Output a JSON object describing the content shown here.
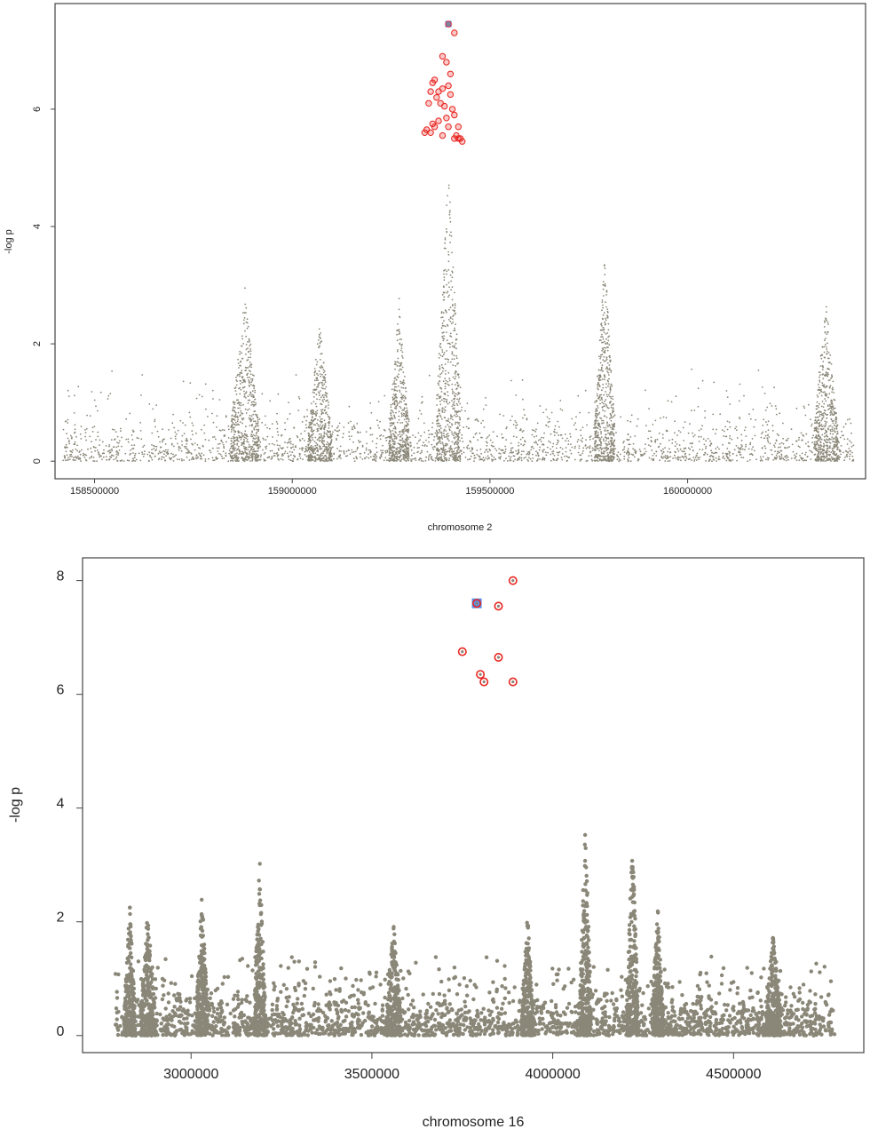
{
  "colors": {
    "background_points": "#8a8778",
    "hit_points": "#e8231e",
    "lead_marker": "#5b8fe8",
    "axis": "#444444"
  },
  "chart_data": [
    {
      "type": "scatter",
      "title": "",
      "xlabel": "chromosome 2",
      "ylabel": "-log p",
      "xlim": [
        158400000,
        160450000
      ],
      "ylim": [
        -0.3,
        7.8
      ],
      "xticks": [
        158500000,
        159000000,
        159500000,
        160000000
      ],
      "xtick_labels": [
        "158500000",
        "159000000",
        "159500000",
        "160000000"
      ],
      "yticks": [
        0,
        2,
        4,
        6
      ],
      "ytick_labels": [
        "0",
        "2",
        "4",
        "6"
      ],
      "grid": false,
      "legend": "none",
      "background_range_x": [
        158420000,
        160420000
      ],
      "peaks": [
        {
          "x": 158880000,
          "height": 3.0,
          "width": 35000
        },
        {
          "x": 159070000,
          "height": 2.4,
          "width": 30000
        },
        {
          "x": 159270000,
          "height": 2.8,
          "width": 25000
        },
        {
          "x": 159395000,
          "height": 5.0,
          "width": 30000
        },
        {
          "x": 159790000,
          "height": 3.5,
          "width": 25000
        },
        {
          "x": 160350000,
          "height": 2.8,
          "width": 30000
        }
      ],
      "highlight_points": [
        {
          "x": 159380000,
          "y": 6.9
        },
        {
          "x": 159390000,
          "y": 6.8
        },
        {
          "x": 159400000,
          "y": 6.6
        },
        {
          "x": 159410000,
          "y": 7.3
        },
        {
          "x": 159395000,
          "y": 6.4
        },
        {
          "x": 159380000,
          "y": 6.35
        },
        {
          "x": 159370000,
          "y": 6.3
        },
        {
          "x": 159365000,
          "y": 6.2
        },
        {
          "x": 159375000,
          "y": 6.1
        },
        {
          "x": 159385000,
          "y": 6.05
        },
        {
          "x": 159400000,
          "y": 6.25
        },
        {
          "x": 159360000,
          "y": 6.5
        },
        {
          "x": 159355000,
          "y": 6.45
        },
        {
          "x": 159350000,
          "y": 6.3
        },
        {
          "x": 159345000,
          "y": 6.1
        },
        {
          "x": 159405000,
          "y": 6.0
        },
        {
          "x": 159410000,
          "y": 5.9
        },
        {
          "x": 159390000,
          "y": 5.85
        },
        {
          "x": 159370000,
          "y": 5.8
        },
        {
          "x": 159355000,
          "y": 5.75
        },
        {
          "x": 159360000,
          "y": 5.7
        },
        {
          "x": 159395000,
          "y": 5.7
        },
        {
          "x": 159420000,
          "y": 5.7
        },
        {
          "x": 159340000,
          "y": 5.65
        },
        {
          "x": 159335000,
          "y": 5.6
        },
        {
          "x": 159350000,
          "y": 5.6
        },
        {
          "x": 159380000,
          "y": 5.55
        },
        {
          "x": 159415000,
          "y": 5.55
        },
        {
          "x": 159420000,
          "y": 5.5
        },
        {
          "x": 159425000,
          "y": 5.5
        },
        {
          "x": 159430000,
          "y": 5.45
        },
        {
          "x": 159410000,
          "y": 5.5
        }
      ],
      "lead_point": {
        "x": 159395000,
        "y": 7.45
      }
    },
    {
      "type": "scatter",
      "title": "",
      "xlabel": "chromosome 16",
      "ylabel": "-log p",
      "xlim": [
        2700000,
        4860000
      ],
      "ylim": [
        -0.3,
        8.4
      ],
      "xticks": [
        3000000,
        3500000,
        4000000,
        4500000
      ],
      "xtick_labels": [
        "3000000",
        "3500000",
        "4000000",
        "4500000"
      ],
      "yticks": [
        0,
        2,
        4,
        6,
        8
      ],
      "ytick_labels": [
        "0",
        "2",
        "4",
        "6",
        "8"
      ],
      "grid": false,
      "legend": "none",
      "background_range_x": [
        2790000,
        4780000
      ],
      "peaks": [
        {
          "x": 2830000,
          "height": 2.4,
          "width": 15000
        },
        {
          "x": 2880000,
          "height": 2.2,
          "width": 20000
        },
        {
          "x": 3030000,
          "height": 2.6,
          "width": 15000
        },
        {
          "x": 3190000,
          "height": 3.2,
          "width": 15000
        },
        {
          "x": 3560000,
          "height": 2.1,
          "width": 20000
        },
        {
          "x": 3930000,
          "height": 2.2,
          "width": 15000
        },
        {
          "x": 4090000,
          "height": 3.7,
          "width": 15000
        },
        {
          "x": 4220000,
          "height": 3.6,
          "width": 15000
        },
        {
          "x": 4290000,
          "height": 2.3,
          "width": 15000
        },
        {
          "x": 4610000,
          "height": 1.9,
          "width": 20000
        }
      ],
      "highlight_points": [
        {
          "x": 3890000,
          "y": 8.0
        },
        {
          "x": 3850000,
          "y": 7.55
        },
        {
          "x": 3750000,
          "y": 6.75
        },
        {
          "x": 3850000,
          "y": 6.65
        },
        {
          "x": 3800000,
          "y": 6.35
        },
        {
          "x": 3810000,
          "y": 6.22
        },
        {
          "x": 3890000,
          "y": 6.22
        }
      ],
      "lead_point": {
        "x": 3790000,
        "y": 7.6
      }
    }
  ]
}
